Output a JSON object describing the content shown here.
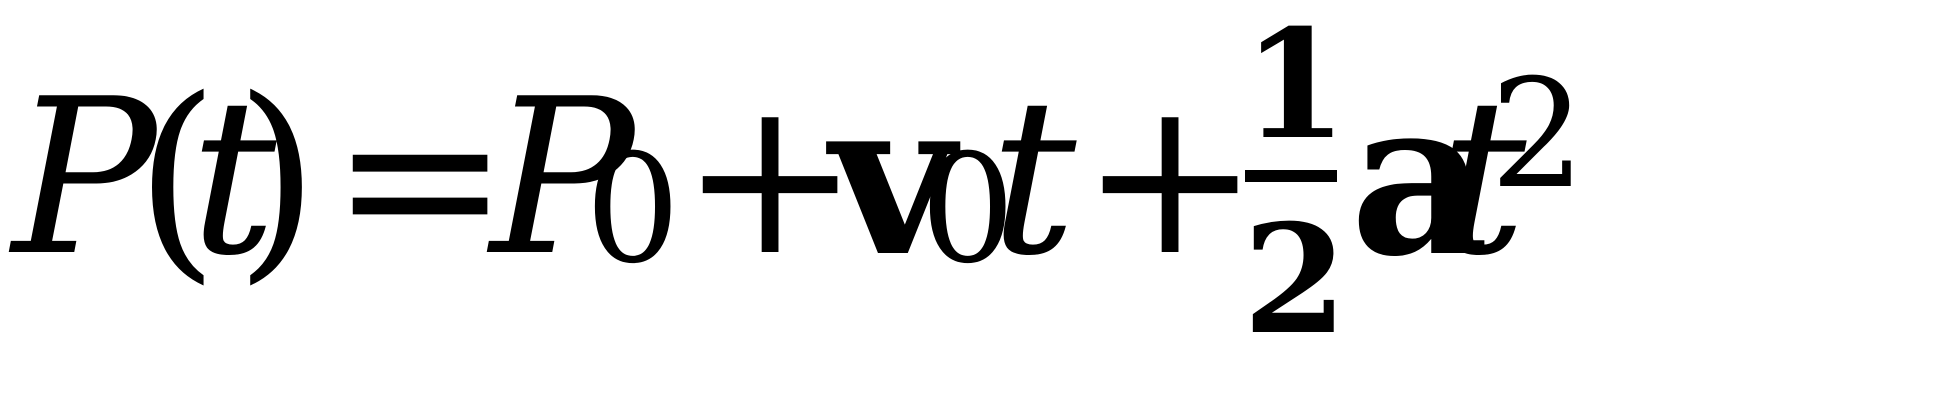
{
  "equation": {
    "lhs_symbol": "P",
    "open_paren": "(",
    "lhs_var": "t",
    "close_paren": ")",
    "equals": "=",
    "p_symbol": "P",
    "p_subscript": "0",
    "plus_1": "+",
    "v_symbol": "v",
    "v_subscript": "0",
    "t_after_v": "t",
    "plus_2": "+",
    "frac_numerator": "1",
    "frac_denominator": "2",
    "a_symbol": "a",
    "t_final": "t",
    "t_exponent": "2"
  }
}
